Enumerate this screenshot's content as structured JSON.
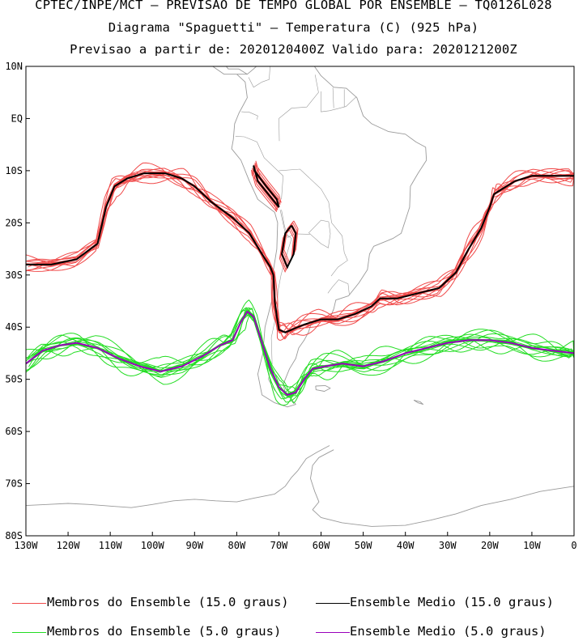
{
  "header": {
    "line1": "CPTEC/INPE/MCT – PREVISAO DE TEMPO GLOBAL POR ENSEMBLE – TQ0126L028",
    "line2": "Diagrama \"Spaguetti\" – Temperatura (C) (925 hPa)",
    "line3": "Previsao a partir de: 2020120400Z  Valido para: 2020121200Z"
  },
  "colors": {
    "members15": "#f04a4a",
    "mean15": "#000000",
    "members5": "#22dd22",
    "mean5": "#9900bb",
    "land": "#9a9a9a"
  },
  "chart_data": {
    "type": "line",
    "title": "Diagrama \"Spaguetti\" – Temperatura (C) (925 hPa)",
    "xlabel": "",
    "ylabel": "",
    "xlim": [
      -130,
      0
    ],
    "ylim": [
      -80,
      10
    ],
    "x_ticks": [
      {
        "value": -130,
        "label": "130W"
      },
      {
        "value": -120,
        "label": "120W"
      },
      {
        "value": -110,
        "label": "110W"
      },
      {
        "value": -100,
        "label": "100W"
      },
      {
        "value": -90,
        "label": "90W"
      },
      {
        "value": -80,
        "label": "80W"
      },
      {
        "value": -70,
        "label": "70W"
      },
      {
        "value": -60,
        "label": "60W"
      },
      {
        "value": -50,
        "label": "50W"
      },
      {
        "value": -40,
        "label": "40W"
      },
      {
        "value": -30,
        "label": "30W"
      },
      {
        "value": -20,
        "label": "20W"
      },
      {
        "value": -10,
        "label": "10W"
      },
      {
        "value": 0,
        "label": "0"
      }
    ],
    "y_ticks": [
      {
        "value": 10,
        "label": "10N"
      },
      {
        "value": 0,
        "label": "EQ"
      },
      {
        "value": -10,
        "label": "10S"
      },
      {
        "value": -20,
        "label": "20S"
      },
      {
        "value": -30,
        "label": "30S"
      },
      {
        "value": -40,
        "label": "40S"
      },
      {
        "value": -50,
        "label": "50S"
      },
      {
        "value": -60,
        "label": "60S"
      },
      {
        "value": -70,
        "label": "70S"
      },
      {
        "value": -80,
        "label": "80S"
      }
    ],
    "series": [
      {
        "name": "Ensemble Medio (15.0 graus)",
        "role": "mean15",
        "lon": [
          -130,
          -124,
          -118,
          -113,
          -111,
          -109,
          -106,
          -102,
          -97,
          -93,
          -90,
          -86,
          -81,
          -77,
          -74,
          -72,
          -71.3,
          -71,
          -70.5,
          -70,
          -68.5,
          -67,
          -64,
          -60,
          -56,
          -52,
          -48,
          -46,
          -42,
          -37,
          -32,
          -28,
          -25,
          -22,
          -20,
          -19,
          -17,
          -14,
          -10,
          -5,
          0
        ],
        "lat": [
          -28,
          -28,
          -27,
          -24,
          -17,
          -13,
          -11.5,
          -10.5,
          -10.5,
          -11.5,
          -13,
          -16,
          -19,
          -22,
          -26,
          -28.5,
          -30,
          -35,
          -38,
          -40.5,
          -41,
          -40.5,
          -39.5,
          -38.5,
          -38.5,
          -37.5,
          -36,
          -34.5,
          -34.5,
          -33.5,
          -32.5,
          -29.5,
          -25,
          -21,
          -17,
          -14.5,
          -13.5,
          -12,
          -11,
          -11,
          -11
        ]
      },
      {
        "name": "Ensemble Medio (5.0 graus)",
        "role": "mean5",
        "lon": [
          -130,
          -126,
          -122,
          -118,
          -113,
          -108,
          -103,
          -98,
          -93,
          -88,
          -84,
          -81,
          -79,
          -77.5,
          -76,
          -74,
          -72,
          -70,
          -68,
          -66,
          -64,
          -62,
          -59,
          -55,
          -50,
          -45,
          -40,
          -35,
          -30,
          -25,
          -20,
          -15,
          -10,
          -5,
          0
        ],
        "lat": [
          -47,
          -44.5,
          -43.5,
          -43,
          -44,
          -46,
          -47.5,
          -48.5,
          -47.5,
          -45.5,
          -43.5,
          -42.5,
          -39,
          -37,
          -38,
          -43,
          -48,
          -51.5,
          -53,
          -52.5,
          -50,
          -48,
          -47.5,
          -47,
          -47.5,
          -46.5,
          -45,
          -44,
          -43,
          -42.5,
          -42.5,
          -43,
          -44,
          -44.5,
          -45
        ]
      }
    ]
  },
  "legend": {
    "members15": "Membros do Ensemble (15.0 graus)",
    "mean15": "Ensemble Medio (15.0 graus)",
    "members5": "Membros do Ensemble (5.0 graus)",
    "mean5": "Ensemble Medio (5.0 graus)"
  }
}
